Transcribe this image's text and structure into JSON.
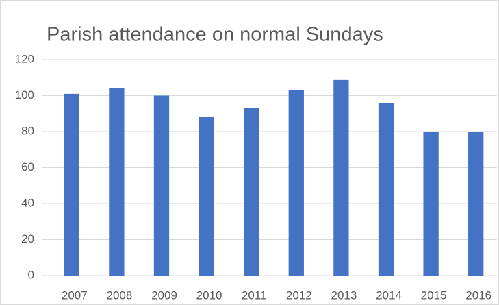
{
  "chart_data": {
    "type": "bar",
    "title": "Parish attendance on normal Sundays",
    "categories": [
      "2007",
      "2008",
      "2009",
      "2010",
      "2011",
      "2012",
      "2013",
      "2014",
      "2015",
      "2016"
    ],
    "values": [
      101,
      104,
      100,
      88,
      93,
      103,
      109,
      96,
      80,
      80
    ],
    "color": "#4472c4",
    "ylim": [
      0,
      120
    ],
    "yticks": [
      0,
      20,
      40,
      60,
      80,
      100,
      120
    ],
    "grid": true
  }
}
